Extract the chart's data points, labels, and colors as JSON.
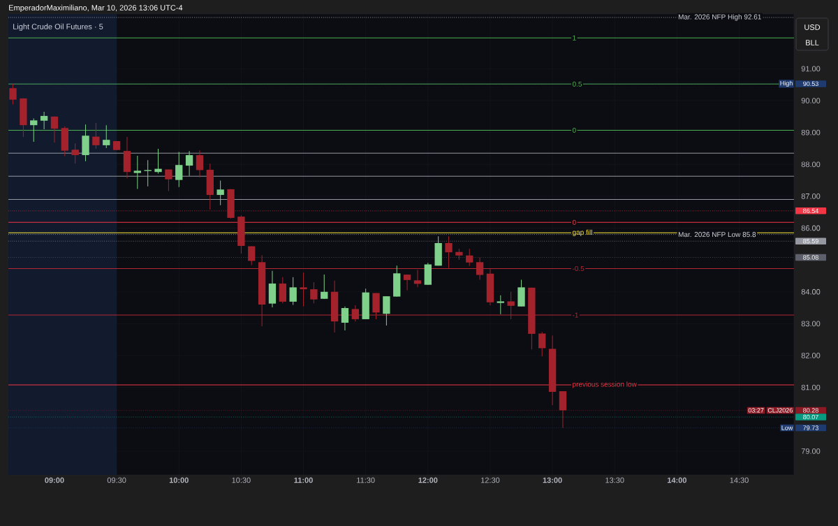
{
  "chart_data": {
    "type": "candlestick",
    "title": "Light Crude Oil Futures · 5",
    "subtitle": "EmperadorMaximiliano, Mar 10, 2026 13:06 UTC-4",
    "x": [
      8.6667,
      8.75,
      8.8333,
      8.9167,
      9,
      9.0833,
      9.1667,
      9.25,
      9.3333,
      9.4167,
      9.5,
      9.5833,
      9.6667,
      9.75,
      9.8333,
      9.9167,
      10,
      10.0833,
      10.1667,
      10.25,
      10.3333,
      10.4167,
      10.5,
      10.5833,
      10.6667,
      10.75,
      10.8333,
      10.9167,
      11,
      11.0833,
      11.1667,
      11.25,
      11.3333,
      11.4167,
      11.5,
      11.5833,
      11.6667,
      11.75,
      11.8333,
      11.9167,
      12,
      12.0833,
      12.1667,
      12.25,
      12.3333,
      12.4167,
      12.5,
      12.5833,
      12.6667,
      12.75,
      12.8333,
      12.9167,
      13,
      13.0833
    ],
    "ohlc": [
      [
        90.39,
        90.53,
        89.88,
        90.03
      ],
      [
        90.07,
        90.07,
        88.86,
        89.23
      ],
      [
        89.23,
        89.44,
        88.71,
        89.38
      ],
      [
        89.37,
        89.65,
        89.1,
        89.52
      ],
      [
        89.5,
        89.5,
        88.68,
        89.12
      ],
      [
        89.14,
        89.19,
        88.26,
        88.43
      ],
      [
        88.46,
        88.66,
        88.02,
        88.29
      ],
      [
        88.29,
        89.25,
        88.1,
        88.9
      ],
      [
        88.87,
        89.3,
        88.49,
        88.6
      ],
      [
        88.6,
        89.23,
        88.51,
        88.77
      ],
      [
        88.73,
        88.73,
        88.45,
        88.45
      ],
      [
        88.42,
        88.86,
        87.56,
        87.76
      ],
      [
        87.73,
        88.27,
        87.23,
        87.8
      ],
      [
        87.79,
        88.13,
        87.31,
        87.82
      ],
      [
        87.76,
        88.49,
        87.71,
        87.86
      ],
      [
        87.84,
        87.84,
        87.16,
        87.53
      ],
      [
        87.51,
        88.39,
        87.29,
        87.98
      ],
      [
        87.96,
        88.42,
        87.64,
        88.29
      ],
      [
        88.29,
        88.44,
        87.59,
        87.82
      ],
      [
        87.83,
        88.02,
        86.58,
        87.04
      ],
      [
        87.04,
        87.49,
        86.72,
        87.21
      ],
      [
        87.22,
        87.22,
        86.3,
        86.32
      ],
      [
        86.36,
        86.4,
        85.2,
        85.44
      ],
      [
        85.43,
        85.43,
        84.84,
        84.97
      ],
      [
        84.93,
        85.15,
        82.92,
        83.6
      ],
      [
        83.63,
        84.66,
        83.51,
        84.26
      ],
      [
        84.26,
        84.46,
        83.64,
        83.69
      ],
      [
        83.69,
        84.46,
        83.59,
        84.14
      ],
      [
        84.14,
        84.6,
        83.54,
        84.08
      ],
      [
        84.08,
        84.3,
        83.64,
        83.76
      ],
      [
        83.78,
        84.54,
        83.78,
        84.0
      ],
      [
        84.0,
        84.35,
        82.72,
        83.07
      ],
      [
        83.03,
        83.54,
        82.79,
        83.49
      ],
      [
        83.46,
        83.58,
        83.07,
        83.14
      ],
      [
        83.14,
        84.1,
        83.14,
        83.98
      ],
      [
        83.96,
        83.96,
        83.14,
        83.35
      ],
      [
        83.31,
        83.86,
        82.94,
        83.86
      ],
      [
        83.85,
        84.82,
        83.85,
        84.58
      ],
      [
        84.54,
        84.54,
        84.05,
        84.37
      ],
      [
        84.36,
        84.69,
        84.15,
        84.25
      ],
      [
        84.22,
        84.91,
        84.22,
        84.86
      ],
      [
        84.82,
        85.74,
        84.82,
        85.53
      ],
      [
        85.53,
        85.74,
        84.75,
        85.24
      ],
      [
        85.25,
        85.35,
        85.0,
        85.14
      ],
      [
        85.14,
        85.35,
        84.81,
        84.92
      ],
      [
        84.93,
        85.08,
        84.38,
        84.53
      ],
      [
        84.57,
        84.71,
        83.58,
        83.67
      ],
      [
        83.65,
        83.89,
        83.3,
        83.7
      ],
      [
        83.7,
        84.0,
        83.14,
        83.56
      ],
      [
        83.54,
        84.38,
        83.54,
        84.14
      ],
      [
        84.13,
        84.13,
        82.19,
        82.68
      ],
      [
        82.69,
        82.74,
        81.97,
        82.23
      ],
      [
        82.21,
        82.63,
        80.44,
        80.86
      ],
      [
        80.88,
        80.88,
        79.73,
        80.28
      ]
    ],
    "colors": [
      "#a3222c",
      "#a3222c",
      "#7fd08a",
      "#7fd08a",
      "#a3222c",
      "#a3222c",
      "#a3222c",
      "#7fd08a",
      "#a3222c",
      "#7fd08a",
      "#a3222c",
      "#a3222c",
      "#7fd08a",
      "#7fd08a",
      "#7fd08a",
      "#a3222c",
      "#7fd08a",
      "#7fd08a",
      "#a3222c",
      "#a3222c",
      "#7fd08a",
      "#a3222c",
      "#a3222c",
      "#a3222c",
      "#a3222c",
      "#7fd08a",
      "#a3222c",
      "#7fd08a",
      "#a3222c",
      "#a3222c",
      "#7fd08a",
      "#a3222c",
      "#7fd08a",
      "#a3222c",
      "#7fd08a",
      "#a3222c",
      "#7fd08a",
      "#7fd08a",
      "#a3222c",
      "#a3222c",
      "#7fd08a",
      "#7fd08a",
      "#a3222c",
      "#a3222c",
      "#a3222c",
      "#a3222c",
      "#a3222c",
      "#7fd08a",
      "#a3222c",
      "#7fd08a",
      "#a3222c",
      "#a3222c",
      "#a3222c",
      "#a3222c"
    ],
    "xlim": [
      8.63,
      14.94
    ],
    "ylim": [
      78.25,
      92.72
    ],
    "xticks": [
      {
        "value": 9,
        "label": "09:00"
      },
      {
        "value": 9.5,
        "label": "09:30"
      },
      {
        "value": 10,
        "label": "10:00"
      },
      {
        "value": 10.5,
        "label": "10:30"
      },
      {
        "value": 11,
        "label": "11:00"
      },
      {
        "value": 11.5,
        "label": "11:30"
      },
      {
        "value": 12,
        "label": "12:00"
      },
      {
        "value": 12.5,
        "label": "12:30"
      },
      {
        "value": 13,
        "label": "13:00"
      },
      {
        "value": 13.5,
        "label": "13:30"
      },
      {
        "value": 14,
        "label": "14:00"
      },
      {
        "value": 14.5,
        "label": "14:30"
      }
    ],
    "yticks": [
      {
        "value": 79,
        "label": "79.00"
      },
      {
        "value": 81,
        "label": "81.00"
      },
      {
        "value": 82,
        "label": "82.00"
      },
      {
        "value": 83,
        "label": "83.00"
      },
      {
        "value": 84,
        "label": "84.00"
      },
      {
        "value": 86,
        "label": "86.00"
      },
      {
        "value": 87,
        "label": "87.00"
      },
      {
        "value": 88,
        "label": "88.00"
      },
      {
        "value": 89,
        "label": "89.00"
      },
      {
        "value": 90,
        "label": "90.00"
      },
      {
        "value": 91,
        "label": "91.00"
      },
      {
        "value": 90.53,
        "label": "90.53"
      },
      {
        "value": 86.54,
        "label": "86.54"
      },
      {
        "value": 85.59,
        "label": "85.59"
      },
      {
        "value": 85.08,
        "label": "85.08"
      },
      {
        "value": 80.28,
        "label": "80.28"
      },
      {
        "value": 80.07,
        "label": "80.07"
      },
      {
        "value": 79.73,
        "label": "79.73"
      }
    ],
    "grid": true,
    "bands": [
      {
        "axis": "x",
        "from": 8.63,
        "to": 9.5,
        "color": "#121a2e"
      }
    ],
    "ref_lines": [
      {
        "axis": "y",
        "value": 92.61,
        "label": "Mar. 2026 NFP High 92.61",
        "color": "#d1d4dc",
        "line_style": "dotted"
      },
      {
        "axis": "y",
        "value": 91.97,
        "color": "#4caf50"
      },
      {
        "axis": "y",
        "value": 90.52,
        "color": "#4caf50"
      },
      {
        "axis": "y",
        "value": 89.07,
        "color": "#4caf50"
      },
      {
        "axis": "y",
        "value": 88.35,
        "color": "#9598a1"
      },
      {
        "axis": "y",
        "value": 87.63,
        "color": "#9598a1"
      },
      {
        "axis": "y",
        "value": 86.9,
        "color": "#9598a1"
      },
      {
        "axis": "y",
        "value": 86.18,
        "color": "#f23645"
      },
      {
        "axis": "y",
        "value": 85.85,
        "label": "gap fill",
        "color": "#ffeb3b"
      },
      {
        "axis": "y",
        "value": 85.8,
        "label": "Mar. 2026 NFP Low 85.8",
        "color": "#d1d4dc",
        "line_style": "dotted"
      },
      {
        "axis": "y",
        "value": 84.73,
        "color": "#b22833"
      },
      {
        "axis": "y",
        "value": 83.27,
        "color": "#b22833"
      },
      {
        "axis": "y",
        "value": 81.08,
        "label": "previous session low",
        "color": "#f23645"
      },
      {
        "axis": "y",
        "value": 90.53,
        "label": "High",
        "color": "#1e3a6e",
        "line_style": "dotted"
      },
      {
        "axis": "y",
        "value": 86.54,
        "color": "#f23645",
        "line_style": "dotted"
      },
      {
        "axis": "y",
        "value": 85.59,
        "color": "#9598a1",
        "line_style": "dotted"
      },
      {
        "axis": "y",
        "value": 85.08,
        "color": "#5d606b",
        "line_style": "dotted"
      },
      {
        "axis": "y",
        "value": 80.28,
        "label": "CLJ2026",
        "color": "#8b1a24",
        "line_style": "dotted"
      },
      {
        "axis": "y",
        "value": 80.07,
        "color": "#089981",
        "line_style": "dotted"
      },
      {
        "axis": "y",
        "value": 79.73,
        "label": "Low",
        "color": "#1e3a6e",
        "line_style": "dotted"
      }
    ],
    "annotations": [
      "USD",
      "BLL",
      {
        "text": "03:27",
        "y": 80.28
      },
      {
        "text": "1",
        "y": 91.97
      },
      {
        "text": "0.5",
        "y": 90.52
      },
      {
        "text": "0",
        "y": 89.07
      },
      {
        "text": "0",
        "y": 86.18
      },
      {
        "text": "-0.5",
        "y": 84.73
      },
      {
        "text": "-1",
        "y": 83.27
      }
    ]
  }
}
